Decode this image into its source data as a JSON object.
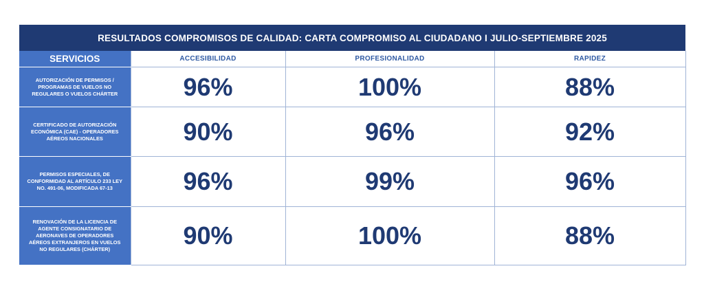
{
  "chart_data": {
    "type": "table",
    "title": "RESULTADOS COMPROMISOS DE CALIDAD: CARTA COMPROMISO AL CIUDADANO I  JULIO-SEPTIEMBRE 2025",
    "row_header": "SERVICIOS",
    "columns": [
      "ACCESIBILIDAD",
      "PROFESIONALIDAD",
      "RAPIDEZ"
    ],
    "rows": [
      {
        "service": "AUTORIZACIÓN DE PERMISOS / PROGRAMAS DE VUELOS NO REGULARES O VUELOS CHÁRTER",
        "values": [
          "96%",
          "100%",
          "88%"
        ]
      },
      {
        "service": "CERTIFICADO DE AUTORIZACIÓN ECONÓMICA (CAE) - OPERADORES AÉREOS NACIONALES",
        "values": [
          "90%",
          "96%",
          "92%"
        ]
      },
      {
        "service": "PERMISOS ESPECIALES, DE CONFORMIDAD AL ARTÍCULO 233 LEY NO. 491-06, MODIFICADA 67-13",
        "values": [
          "96%",
          "99%",
          "96%"
        ]
      },
      {
        "service": "RENOVACIÓN DE LA LICENCIA DE AGENTE CONSIGNATARIO DE AERONAVES DE OPERADORES AÉREOS EXTRANJEROS EN VUELOS NO REGULARES (CHÁRTER)",
        "values": [
          "90%",
          "100%",
          "88%"
        ]
      }
    ]
  },
  "colors": {
    "title_bg": "#1f3a73",
    "service_bg": "#4472c4",
    "header_text": "#2f5aa3",
    "value_text": "#1f3a73",
    "grid": "#9fb3d6"
  }
}
